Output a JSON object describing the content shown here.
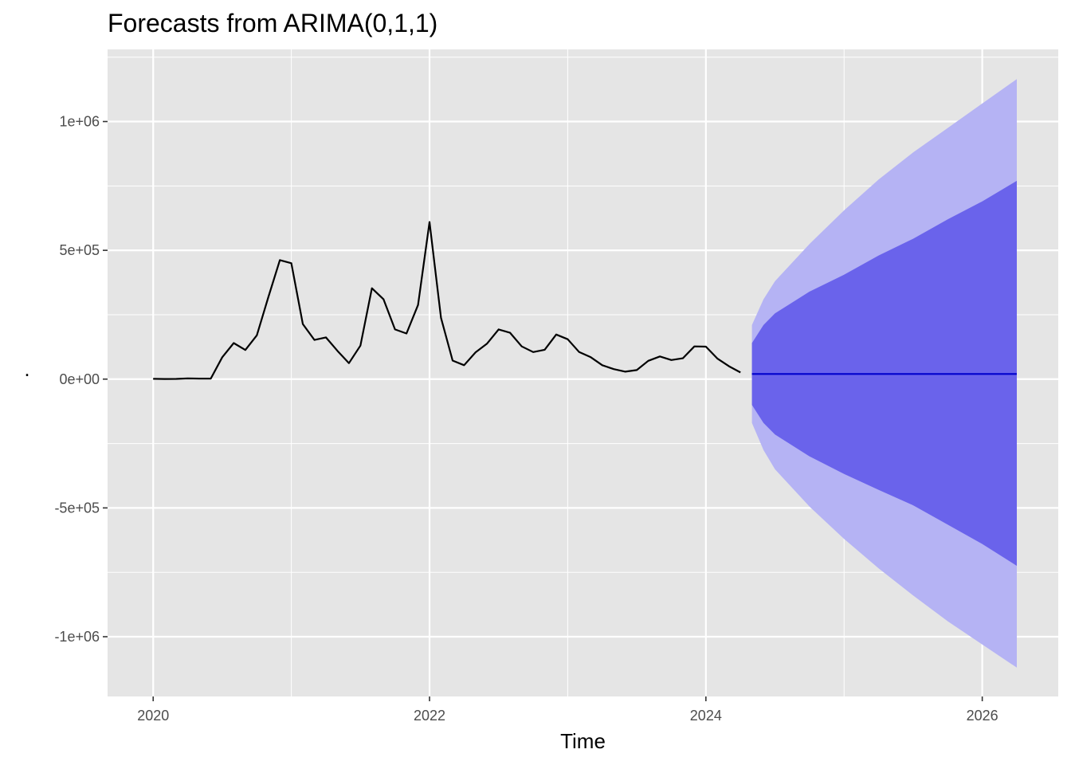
{
  "chart_data": {
    "type": "line",
    "title": "Forecasts from ARIMA(0,1,1)",
    "xlabel": "Time",
    "ylabel": ".",
    "xlim": [
      2019.67,
      2026.55
    ],
    "ylim": [
      -1232000,
      1280000
    ],
    "x_ticks": [
      {
        "value": 2020,
        "label": "2020"
      },
      {
        "value": 2022,
        "label": "2022"
      },
      {
        "value": 2024,
        "label": "2024"
      },
      {
        "value": 2026,
        "label": "2026"
      }
    ],
    "y_ticks": [
      {
        "value": 1000000,
        "label": "1e+06"
      },
      {
        "value": 500000,
        "label": "5e+05"
      },
      {
        "value": 0,
        "label": "0e+00"
      },
      {
        "value": -500000,
        "label": "-5e+05"
      },
      {
        "value": -1000000,
        "label": "-1e+06"
      }
    ],
    "grid": true,
    "background": "#e5e5e5",
    "colors": {
      "observed": "#000000",
      "forecast": "#0000cc",
      "band_80": "#6a63eb",
      "band_95": "#b5b3f4"
    },
    "observed": [
      [
        2020.0,
        1000
      ],
      [
        2020.083,
        500
      ],
      [
        2020.167,
        800
      ],
      [
        2020.25,
        2500
      ],
      [
        2020.333,
        2000
      ],
      [
        2020.417,
        2000
      ],
      [
        2020.5,
        85000
      ],
      [
        2020.583,
        140000
      ],
      [
        2020.667,
        113000
      ],
      [
        2020.75,
        170000
      ],
      [
        2020.833,
        318000
      ],
      [
        2020.917,
        462000
      ],
      [
        2021.0,
        450000
      ],
      [
        2021.083,
        214000
      ],
      [
        2021.167,
        152000
      ],
      [
        2021.25,
        162000
      ],
      [
        2021.333,
        110000
      ],
      [
        2021.417,
        62000
      ],
      [
        2021.5,
        130000
      ],
      [
        2021.583,
        353000
      ],
      [
        2021.667,
        310000
      ],
      [
        2021.75,
        193000
      ],
      [
        2021.833,
        177000
      ],
      [
        2021.917,
        288000
      ],
      [
        2022.0,
        610000
      ],
      [
        2022.083,
        238000
      ],
      [
        2022.167,
        72000
      ],
      [
        2022.25,
        54000
      ],
      [
        2022.333,
        104000
      ],
      [
        2022.417,
        138000
      ],
      [
        2022.5,
        193000
      ],
      [
        2022.583,
        180000
      ],
      [
        2022.667,
        127000
      ],
      [
        2022.75,
        105000
      ],
      [
        2022.833,
        114000
      ],
      [
        2022.917,
        173000
      ],
      [
        2023.0,
        155000
      ],
      [
        2023.083,
        105000
      ],
      [
        2023.167,
        85000
      ],
      [
        2023.25,
        54000
      ],
      [
        2023.333,
        39000
      ],
      [
        2023.417,
        29000
      ],
      [
        2023.5,
        35000
      ],
      [
        2023.583,
        71000
      ],
      [
        2023.667,
        88000
      ],
      [
        2023.75,
        74000
      ],
      [
        2023.833,
        81000
      ],
      [
        2023.917,
        127000
      ],
      [
        2024.0,
        126000
      ],
      [
        2024.083,
        80000
      ],
      [
        2024.167,
        50000
      ],
      [
        2024.25,
        26000
      ]
    ],
    "forecast": {
      "x_start": 2024.333,
      "x_end": 2026.25,
      "point": 20000,
      "lo80": [
        [
          2024.333,
          -100000
        ],
        [
          2024.417,
          -170000
        ],
        [
          2024.5,
          -215000
        ],
        [
          2024.75,
          -300000
        ],
        [
          2025.0,
          -368000
        ],
        [
          2025.25,
          -430000
        ],
        [
          2025.5,
          -490000
        ],
        [
          2025.75,
          -565000
        ],
        [
          2026.0,
          -640000
        ],
        [
          2026.25,
          -725000
        ]
      ],
      "hi80": [
        [
          2024.333,
          140000
        ],
        [
          2024.417,
          210000
        ],
        [
          2024.5,
          255000
        ],
        [
          2024.75,
          340000
        ],
        [
          2025.0,
          405000
        ],
        [
          2025.25,
          480000
        ],
        [
          2025.5,
          545000
        ],
        [
          2025.75,
          620000
        ],
        [
          2026.0,
          690000
        ],
        [
          2026.25,
          770000
        ]
      ],
      "lo95": [
        [
          2024.333,
          -170000
        ],
        [
          2024.417,
          -275000
        ],
        [
          2024.5,
          -350000
        ],
        [
          2024.75,
          -495000
        ],
        [
          2025.0,
          -620000
        ],
        [
          2025.25,
          -735000
        ],
        [
          2025.5,
          -840000
        ],
        [
          2025.75,
          -940000
        ],
        [
          2026.0,
          -1030000
        ],
        [
          2026.25,
          -1120000
        ]
      ],
      "hi95": [
        [
          2024.333,
          210000
        ],
        [
          2024.417,
          310000
        ],
        [
          2024.5,
          380000
        ],
        [
          2024.75,
          525000
        ],
        [
          2025.0,
          655000
        ],
        [
          2025.25,
          775000
        ],
        [
          2025.5,
          880000
        ],
        [
          2025.75,
          975000
        ],
        [
          2026.0,
          1070000
        ],
        [
          2026.25,
          1165000
        ]
      ]
    }
  }
}
